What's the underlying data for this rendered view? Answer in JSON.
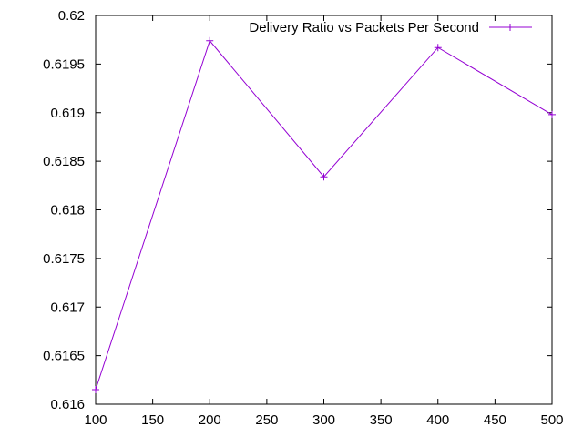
{
  "chart_data": {
    "type": "line",
    "title": "",
    "xlabel": "",
    "ylabel": "",
    "xlim": [
      100,
      500
    ],
    "ylim": [
      0.616,
      0.62
    ],
    "x_ticks": [
      100,
      150,
      200,
      250,
      300,
      350,
      400,
      450,
      500
    ],
    "x_tick_labels": [
      "100",
      "150",
      "200",
      "250",
      "300",
      "350",
      "400",
      "450",
      "500"
    ],
    "y_ticks": [
      0.616,
      0.6165,
      0.617,
      0.6175,
      0.618,
      0.6185,
      0.619,
      0.6195,
      0.62
    ],
    "y_tick_labels": [
      "0.616",
      "0.6165",
      "0.617",
      "0.6175",
      "0.618",
      "0.6185",
      "0.619",
      "0.6195",
      "0.62"
    ],
    "grid": false,
    "legend_position": "top-right",
    "series": [
      {
        "name": "Delivery Ratio vs Packets Per Second",
        "color": "#9400d3",
        "marker": "plus",
        "x": [
          100,
          200,
          300,
          400,
          500
        ],
        "y": [
          0.61615,
          0.61974,
          0.61834,
          0.61967,
          0.61898
        ]
      }
    ]
  }
}
